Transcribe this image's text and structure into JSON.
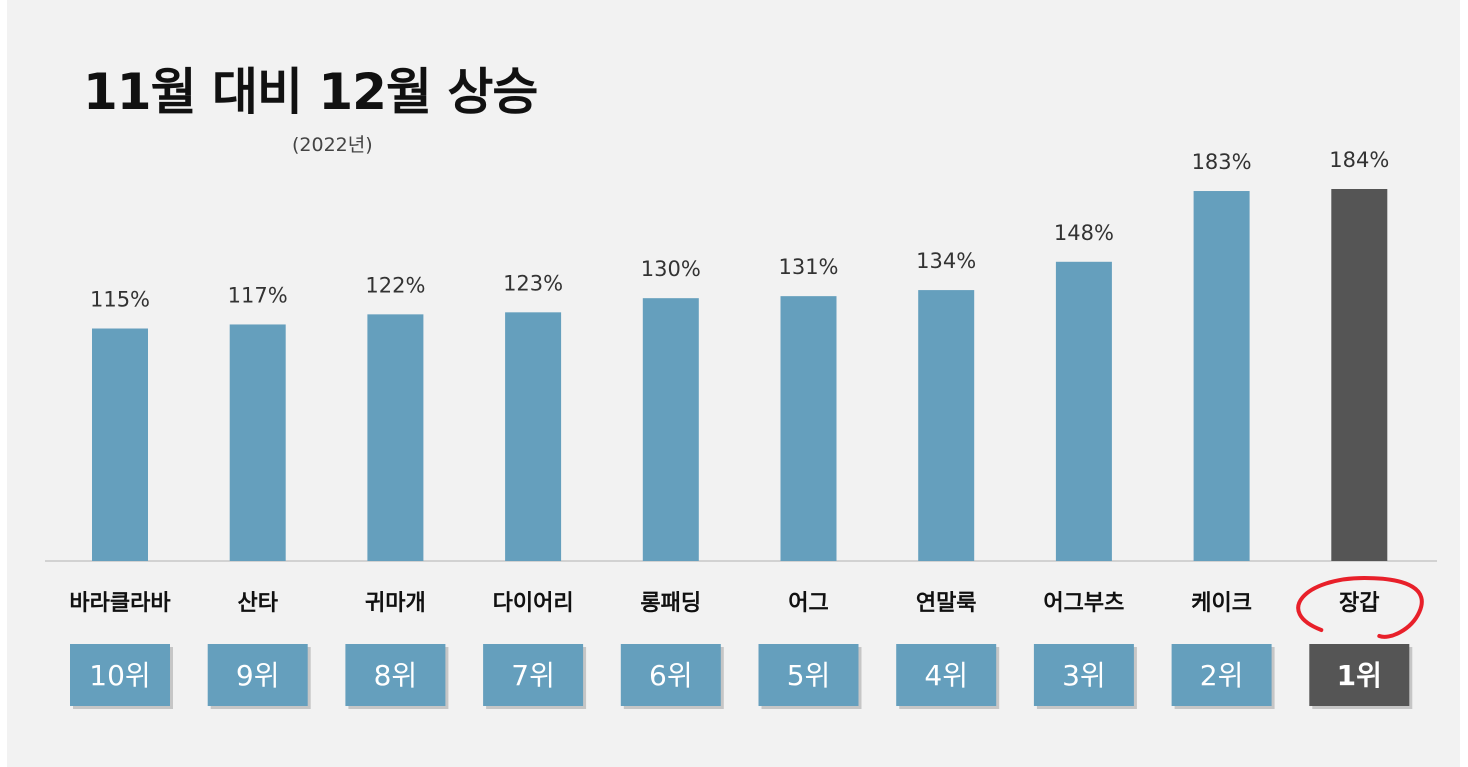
{
  "header": {
    "title": "11월 대비 12월 상승",
    "subtitle": "(2022년)"
  },
  "colors": {
    "bar": "#659fbd",
    "highlight_bar": "#555555",
    "rank_box": "#659fbd",
    "highlight_rank_box": "#555555",
    "circle": "#e8202a",
    "background": "#f2f2f2"
  },
  "chart_data": {
    "type": "bar",
    "title": "11월 대비 12월 상승",
    "subtitle": "(2022년)",
    "categories": [
      "바라클라바",
      "산타",
      "귀마개",
      "다이어리",
      "롱패딩",
      "어그",
      "연말룩",
      "어그부츠",
      "케이크",
      "장갑"
    ],
    "values": [
      115,
      117,
      122,
      123,
      130,
      131,
      134,
      148,
      183,
      184
    ],
    "value_labels": [
      "115%",
      "117%",
      "122%",
      "123%",
      "130%",
      "131%",
      "134%",
      "148%",
      "183%",
      "184%"
    ],
    "ranks": [
      "10위",
      "9위",
      "8위",
      "7위",
      "6위",
      "5위",
      "4위",
      "3위",
      "2위",
      "1위"
    ],
    "highlight_index": 9,
    "unit": "%",
    "ylim": [
      0,
      184
    ],
    "grid": false,
    "xlabel": "",
    "ylabel": ""
  }
}
